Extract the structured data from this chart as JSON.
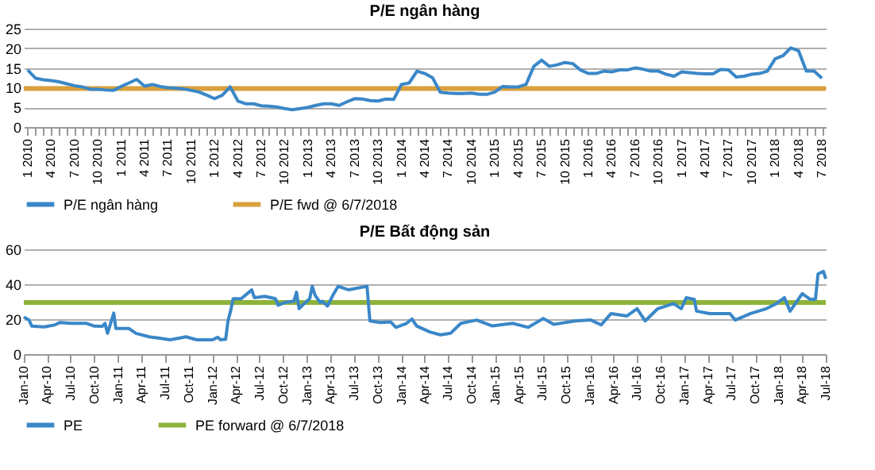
{
  "chart_data": [
    {
      "type": "line",
      "title": "P/E ngân hàng",
      "categories": [
        "1 2010",
        null,
        null,
        "4 2010",
        null,
        null,
        "7 2010",
        null,
        null,
        "10 2010",
        null,
        null,
        "1 2011",
        null,
        null,
        "4 2011",
        null,
        null,
        "7 2011",
        null,
        null,
        "10 2011",
        null,
        null,
        "1 2012",
        null,
        null,
        "4 2012",
        null,
        null,
        "7 2012",
        null,
        null,
        "10 2012",
        null,
        null,
        "1 2013",
        null,
        null,
        "4 2013",
        null,
        null,
        "7 2013",
        null,
        null,
        "10 2013",
        null,
        null,
        "1 2014",
        null,
        null,
        "4 2014",
        null,
        null,
        "7 2014",
        null,
        null,
        "10 2014",
        null,
        null,
        "1 2015",
        null,
        null,
        "4 2015",
        null,
        null,
        "7 2015",
        null,
        null,
        "10 2015",
        null,
        null,
        "1 2016",
        null,
        null,
        "4 2016",
        null,
        null,
        "7 2016",
        null,
        null,
        "10 2016",
        null,
        null,
        "1 2017",
        null,
        null,
        "4 2017",
        null,
        null,
        "7 2017",
        null,
        null,
        "10 2017",
        null,
        null,
        "1 2018",
        null,
        null,
        "4 2018",
        null,
        null,
        "7 2018"
      ],
      "series": [
        {
          "name": "P/E ngân hàng",
          "color": "#3a87c8",
          "values": [
            14.5,
            12.4,
            12.0,
            11.8,
            11.5,
            11.0,
            10.5,
            10.2,
            9.6,
            9.6,
            9.4,
            9.3,
            10.3,
            11.2,
            12.1,
            10.4,
            10.8,
            10.3,
            10.0,
            9.9,
            9.7,
            9.3,
            8.9,
            8.1,
            7.2,
            8.1,
            10.2,
            6.6,
            5.9,
            5.9,
            5.4,
            5.3,
            5.1,
            4.7,
            4.4,
            4.7,
            5.0,
            5.5,
            5.9,
            5.9,
            5.5,
            6.4,
            7.2,
            7.1,
            6.7,
            6.6,
            7.1,
            7.0,
            10.8,
            11.2,
            14.2,
            13.6,
            12.5,
            8.8,
            8.6,
            8.5,
            8.5,
            8.6,
            8.3,
            8.3,
            8.9,
            10.3,
            10.2,
            10.2,
            10.8,
            15.4,
            17.0,
            15.4,
            15.8,
            16.4,
            16.1,
            14.5,
            13.6,
            13.6,
            14.2,
            14.0,
            14.5,
            14.5,
            15.0,
            14.7,
            14.2,
            14.2,
            13.4,
            12.9,
            14.0,
            13.8,
            13.6,
            13.5,
            13.5,
            14.6,
            14.5,
            12.7,
            12.9,
            13.4,
            13.6,
            14.2,
            17.3,
            18.1,
            20.1,
            19.4,
            14.2,
            14.2,
            12.4
          ]
        }
      ],
      "ref_lines": [
        {
          "axis": "y",
          "value": 9.8,
          "label": "P/E fwd @ 6/7/2018",
          "color": "#d9a03c"
        }
      ],
      "ylim": [
        0,
        25
      ],
      "yticks": [
        0,
        5,
        10,
        15,
        20,
        25
      ],
      "grid": "y",
      "legend": "bottom",
      "marker": "none",
      "line_style": "solid"
    },
    {
      "type": "line",
      "title": "P/E Bất động sản",
      "x": [
        "2010-01-01",
        "2010-01-21",
        "2010-02-01",
        "2010-03-21",
        "2010-05-01",
        "2010-05-21",
        "2010-07-01",
        "2010-09-01",
        "2010-10-01",
        "2010-11-01",
        "2010-11-11",
        "2010-11-21",
        "2010-12-01",
        "2010-12-15",
        "2010-12-23",
        "2011-02-11",
        "2011-03-11",
        "2011-05-01",
        "2011-06-11",
        "2011-07-21",
        "2011-09-21",
        "2011-11-01",
        "2012-01-01",
        "2012-01-21",
        "2012-02-01",
        "2012-02-21",
        "2012-03-01",
        "2012-03-11",
        "2012-03-21",
        "2012-04-21",
        "2012-05-21",
        "2012-06-01",
        "2012-06-11",
        "2012-07-21",
        "2012-09-01",
        "2012-09-11",
        "2012-10-11",
        "2012-11-11",
        "2012-11-21",
        "2012-12-01",
        "2012-12-21",
        "2013-01-11",
        "2013-01-21",
        "2013-02-01",
        "2013-02-21",
        "2013-03-01",
        "2013-03-21",
        "2013-04-11",
        "2013-05-01",
        "2013-06-11",
        "2013-08-21",
        "2013-09-01",
        "2013-10-11",
        "2013-11-21",
        "2013-12-11",
        "2014-01-21",
        "2014-02-11",
        "2014-03-01",
        "2014-04-21",
        "2014-06-01",
        "2014-07-10",
        "2014-08-19",
        "2014-10-19",
        "2014-12-19",
        "2015-03-07",
        "2015-05-07",
        "2015-07-04",
        "2015-08-13",
        "2015-11-04",
        "2016-01-04",
        "2016-02-13",
        "2016-03-22",
        "2016-05-22",
        "2016-07-01",
        "2016-08-01",
        "2016-09-19",
        "2016-11-19",
        "2016-12-19",
        "2017-01-07",
        "2017-02-07",
        "2017-02-16",
        "2017-04-07",
        "2017-06-25",
        "2017-07-16",
        "2017-09-13",
        "2017-11-13",
        "2017-12-22",
        "2018-01-22",
        "2018-02-13",
        "2018-04-01",
        "2018-05-01",
        "2018-05-22",
        "2018-06-01",
        "2018-06-22",
        "2018-07-01"
      ],
      "series": [
        {
          "name": "PE",
          "color": "#3a87c8",
          "values": [
            21.2,
            19.5,
            16,
            15.6,
            16.7,
            18.1,
            17.6,
            17.6,
            16,
            15.9,
            17.6,
            11.9,
            16.7,
            23.5,
            14.7,
            14.7,
            11.9,
            9.9,
            9.1,
            8.2,
            9.9,
            8.2,
            8.2,
            9.6,
            8.2,
            8.5,
            19,
            24.6,
            31.7,
            31.7,
            35.4,
            36.8,
            32.3,
            33.1,
            31.7,
            28,
            29.7,
            30.3,
            35.4,
            26,
            28.9,
            31.7,
            38.8,
            33.7,
            29.5,
            30.3,
            27.5,
            33.7,
            38.8,
            36.8,
            38.8,
            19,
            18.1,
            18.4,
            15.3,
            17.6,
            20.1,
            16.1,
            12.7,
            11,
            11.9,
            17.6,
            19.5,
            16.1,
            17.6,
            15.3,
            20.4,
            17,
            19,
            19.5,
            16.7,
            23.2,
            21.8,
            26,
            19,
            26,
            28.9,
            26,
            32.3,
            31.4,
            24.6,
            23.2,
            23.2,
            19.5,
            23.2,
            26,
            28.9,
            32.3,
            24.6,
            34.6,
            31.4,
            31.4,
            45.9,
            47.3,
            43.1
          ]
        }
      ],
      "ref_lines": [
        {
          "axis": "y",
          "value": 29.5,
          "label": "PE forward @ 6/7/2018",
          "color": "#8db33a"
        }
      ],
      "xlim": [
        "2010-01-01",
        "2018-07-01"
      ],
      "xticks": [
        {
          "value": "2010-01-01",
          "label": "Jan-10"
        },
        {
          "value": "2010-04-01",
          "label": "Apr-10"
        },
        {
          "value": "2010-07-01",
          "label": "Jul-10"
        },
        {
          "value": "2010-10-01",
          "label": "Oct-10"
        },
        {
          "value": "2011-01-01",
          "label": "Jan-11"
        },
        {
          "value": "2011-04-01",
          "label": "Apr-11"
        },
        {
          "value": "2011-07-01",
          "label": "Jul-11"
        },
        {
          "value": "2011-10-01",
          "label": "Oct-11"
        },
        {
          "value": "2012-01-01",
          "label": "Jan-12"
        },
        {
          "value": "2012-04-01",
          "label": "Apr-12"
        },
        {
          "value": "2012-07-01",
          "label": "Jul-12"
        },
        {
          "value": "2012-10-01",
          "label": "Oct-12"
        },
        {
          "value": "2013-01-01",
          "label": "Jan-13"
        },
        {
          "value": "2013-04-01",
          "label": "Apr-13"
        },
        {
          "value": "2013-07-01",
          "label": "Jul-13"
        },
        {
          "value": "2013-10-01",
          "label": "Oct-13"
        },
        {
          "value": "2014-01-01",
          "label": "Jan-14"
        },
        {
          "value": "2014-04-01",
          "label": "Apr-14"
        },
        {
          "value": "2014-07-01",
          "label": "Jul-14"
        },
        {
          "value": "2014-10-01",
          "label": "Oct-14"
        },
        {
          "value": "2015-01-01",
          "label": "Jan-15"
        },
        {
          "value": "2015-04-01",
          "label": "Apr-15"
        },
        {
          "value": "2015-07-01",
          "label": "Jul-15"
        },
        {
          "value": "2015-10-01",
          "label": "Oct-15"
        },
        {
          "value": "2016-01-01",
          "label": "Jan-16"
        },
        {
          "value": "2016-04-01",
          "label": "Apr-16"
        },
        {
          "value": "2016-07-01",
          "label": "Jul-16"
        },
        {
          "value": "2016-10-01",
          "label": "Oct-16"
        },
        {
          "value": "2017-01-01",
          "label": "Jan-17"
        },
        {
          "value": "2017-04-01",
          "label": "Apr-17"
        },
        {
          "value": "2017-07-01",
          "label": "Jul-17"
        },
        {
          "value": "2017-10-01",
          "label": "Oct-17"
        },
        {
          "value": "2018-01-01",
          "label": "Jan-18"
        },
        {
          "value": "2018-04-01",
          "label": "Apr-18"
        },
        {
          "value": "2018-07-01",
          "label": "Jul-18"
        }
      ],
      "ylim": [
        0,
        60
      ],
      "yticks": [
        0,
        20,
        40,
        60
      ],
      "grid": "y",
      "legend": "bottom",
      "marker": "none",
      "line_style": "solid"
    }
  ]
}
